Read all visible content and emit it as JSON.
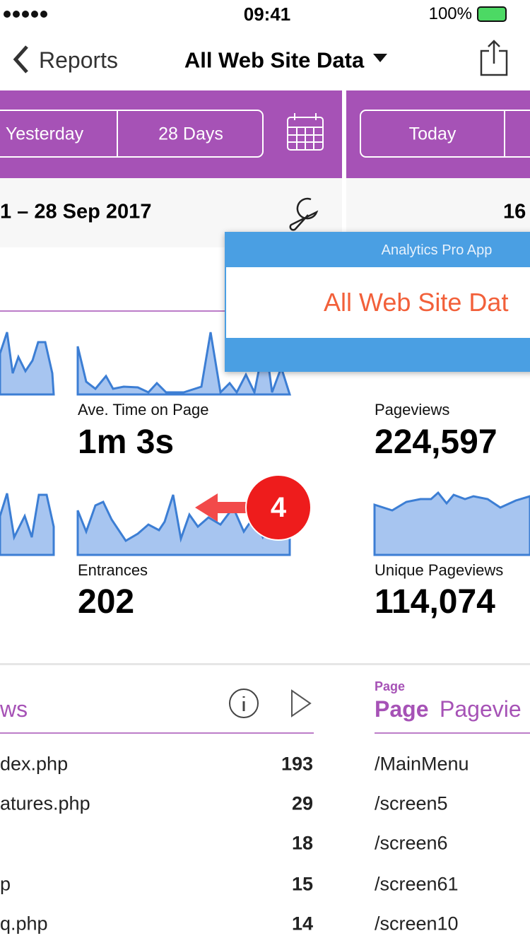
{
  "status_bar": {
    "time": "09:41",
    "battery": "100%"
  },
  "nav_bar": {
    "back": "Reports",
    "title": "All Web Site Data"
  },
  "left_panel": {
    "buttons": [
      "Yesterday",
      "28 Days"
    ],
    "date_range": "1 – 28 Sep 2017",
    "metrics": [
      {
        "label": "Ave. Time on Page",
        "value": "1m 3s"
      },
      {
        "label": "Entrances",
        "value": "202"
      }
    ],
    "table": {
      "header": "ws",
      "rows": [
        {
          "page": "dex.php",
          "count": 193
        },
        {
          "page": "atures.php",
          "count": 29
        },
        {
          "count": 18
        },
        {
          "page": "p",
          "count": 15
        },
        {
          "page": "q.php",
          "count": 14
        }
      ]
    }
  },
  "right_panel": {
    "buttons": [
      "Today"
    ],
    "date_range": "16",
    "metrics": [
      {
        "label": "Pageviews",
        "value": "224,597"
      },
      {
        "label": "Unique Pageviews",
        "value": "114,074"
      }
    ],
    "table": {
      "caption": "Page",
      "header_bold": "Page",
      "header_rest": "Pagevie",
      "rows": [
        "/MainMenu",
        "/screen5",
        "/screen6",
        "/screen61",
        "/screen10"
      ]
    }
  },
  "popup": {
    "app_name": "Analytics Pro App",
    "title": "All Web Site Dat"
  },
  "callout": {
    "label": "4"
  }
}
